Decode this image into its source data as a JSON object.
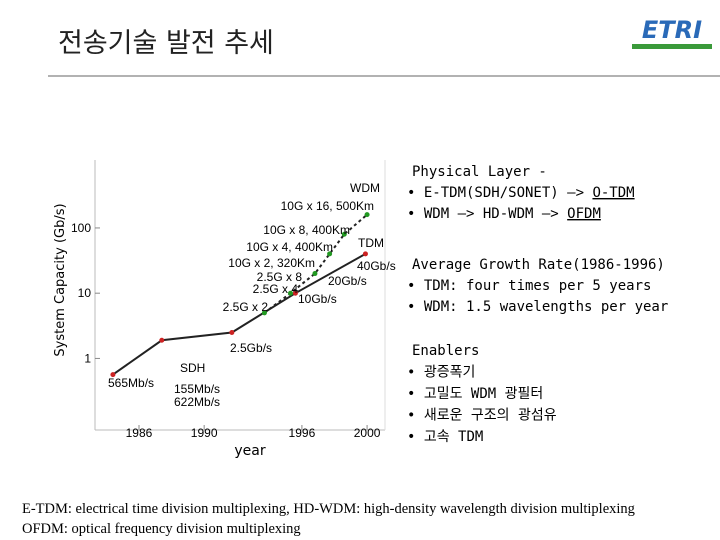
{
  "title": "전송기술 발전 추세",
  "logo": "ETRI",
  "chart_data": {
    "type": "line",
    "xlabel": "year",
    "ylabel": "System Capacity (Gb/s)",
    "xlim": [
      1983.3,
      2001.1
    ],
    "xticks": [
      1986,
      1990,
      1996,
      2000
    ],
    "ylim": [
      0.08,
      1100
    ],
    "yticks": [
      1,
      10,
      100
    ],
    "log_y": true,
    "series": [
      {
        "name": "TDM",
        "color": "#cc2222",
        "x": [
          1984.4,
          1987.4,
          1991.7,
          1995.6,
          1999.9
        ],
        "values": [
          0.565,
          1.9,
          2.5,
          10,
          40
        ]
      },
      {
        "name": "WDM",
        "color": "#229922",
        "x": [
          1993.7,
          1995.3,
          1996.8,
          1997.7,
          1998.6,
          2000
        ],
        "values": [
          5,
          10,
          20,
          40,
          80,
          160
        ]
      }
    ],
    "annotations": [
      "WDM",
      "10G x 16, 500Km",
      "10G x 8, 400Km",
      "TDM",
      "10G x 4, 400Km",
      "10G x 2, 320Km",
      "40Gb/s",
      "2.5G x 8",
      "20Gb/s",
      "2.5G x 4",
      "10Gb/s",
      "2.5G x 2",
      "2.5Gb/s",
      "SDH",
      "565Mb/s",
      "155Mb/s",
      "622Mb/s"
    ]
  },
  "panels": [
    {
      "lines": [
        [
          "Physical Layer -"
        ],
        [
          "• E-TDM(SDH/SONET) —> ",
          "O-TDM"
        ],
        [
          "• WDM —> HD-WDM —> ",
          "OFDM"
        ]
      ]
    },
    {
      "lines": [
        [
          "Average Growth Rate(1986-1996)"
        ],
        [
          "• TDM: four times per 5 years"
        ],
        [
          "• WDM: 1.5 wavelengths per year"
        ]
      ]
    },
    {
      "lines": [
        [
          "Enablers"
        ],
        [
          "• 광증폭기"
        ],
        [
          "• 고밀도 WDM 광필터"
        ],
        [
          "• 새로운 구조의 광섬유"
        ],
        [
          "• 고속 TDM"
        ]
      ]
    }
  ],
  "footnote": [
    "E-TDM: electrical time division multiplexing, HD-WDM: high-density wavelength division multiplexing",
    "OFDM: optical frequency division multiplexing"
  ]
}
